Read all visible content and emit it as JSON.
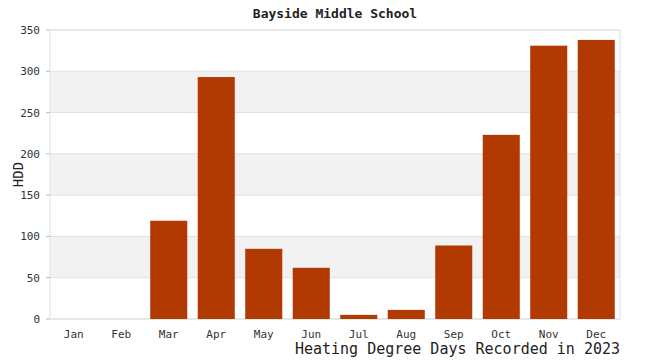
{
  "chart_data": {
    "type": "bar",
    "title": "Bayside Middle School",
    "x_label": "Heating Degree Days Recorded in 2023",
    "y_label": "HDD",
    "categories": [
      "Jan",
      "Feb",
      "Mar",
      "Apr",
      "May",
      "Jun",
      "Jul",
      "Aug",
      "Sep",
      "Oct",
      "Nov",
      "Dec"
    ],
    "values": [
      0,
      0,
      119,
      293,
      85,
      62,
      5,
      11,
      89,
      223,
      331,
      338
    ],
    "color": "#b03a02",
    "ylim": [
      0,
      350
    ],
    "yticks": [
      0,
      50,
      100,
      150,
      200,
      250,
      300,
      350
    ],
    "grid": true
  }
}
